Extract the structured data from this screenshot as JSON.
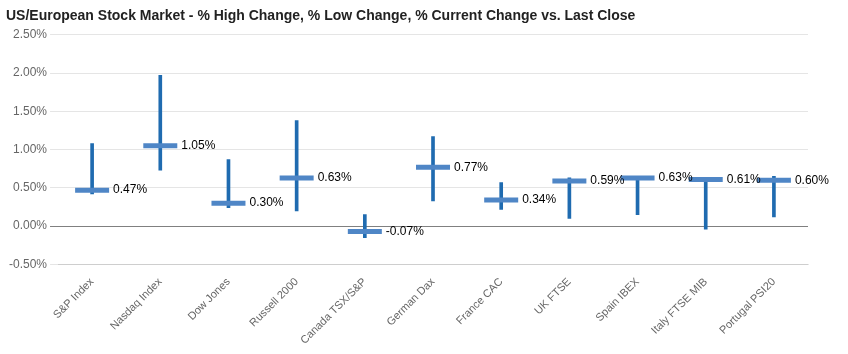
{
  "chart_data": {
    "type": "range",
    "title": "US/European Stock Market - % High Change, % Low Change, % Current Change vs. Last Close",
    "categories": [
      "S&P Index",
      "Nasdaq Index",
      "Dow Jones",
      "Russell 2000",
      "Canada TSX/S&P",
      "German Dax",
      "France CAC",
      "UK FTSE",
      "Spain IBEX",
      "Italy FTSE MIB",
      "Portugal PSI20"
    ],
    "series": [
      {
        "type": "range",
        "color": "#1F6BB0",
        "low": [
          0.42,
          0.73,
          0.24,
          0.2,
          -0.15,
          0.33,
          0.22,
          0.1,
          0.15,
          -0.04,
          0.12
        ],
        "high": [
          1.08,
          1.97,
          0.87,
          1.38,
          0.15,
          1.17,
          0.57,
          0.63,
          0.65,
          0.63,
          0.65
        ]
      },
      {
        "type": "tick",
        "color": "#4F86C6",
        "values": [
          0.47,
          1.05,
          0.3,
          0.63,
          -0.07,
          0.77,
          0.34,
          0.59,
          0.63,
          0.61,
          0.6
        ],
        "value_labels": [
          "0.47%",
          "1.05%",
          "0.30%",
          "0.63%",
          "-0.07%",
          "0.77%",
          "0.34%",
          "0.59%",
          "0.63%",
          "0.61%",
          "0.60%"
        ]
      }
    ],
    "ylim": [
      -0.5,
      2.5
    ],
    "yticks": [
      {
        "value": -0.5,
        "label": "-0.50%"
      },
      {
        "value": 0.0,
        "label": "0.00%"
      },
      {
        "value": 0.5,
        "label": "0.50%"
      },
      {
        "value": 1.0,
        "label": "1.00%"
      },
      {
        "value": 1.5,
        "label": "1.50%"
      },
      {
        "value": 2.0,
        "label": "2.00%"
      },
      {
        "value": 2.5,
        "label": "2.50%"
      }
    ],
    "grid": true,
    "data_labels": true
  }
}
